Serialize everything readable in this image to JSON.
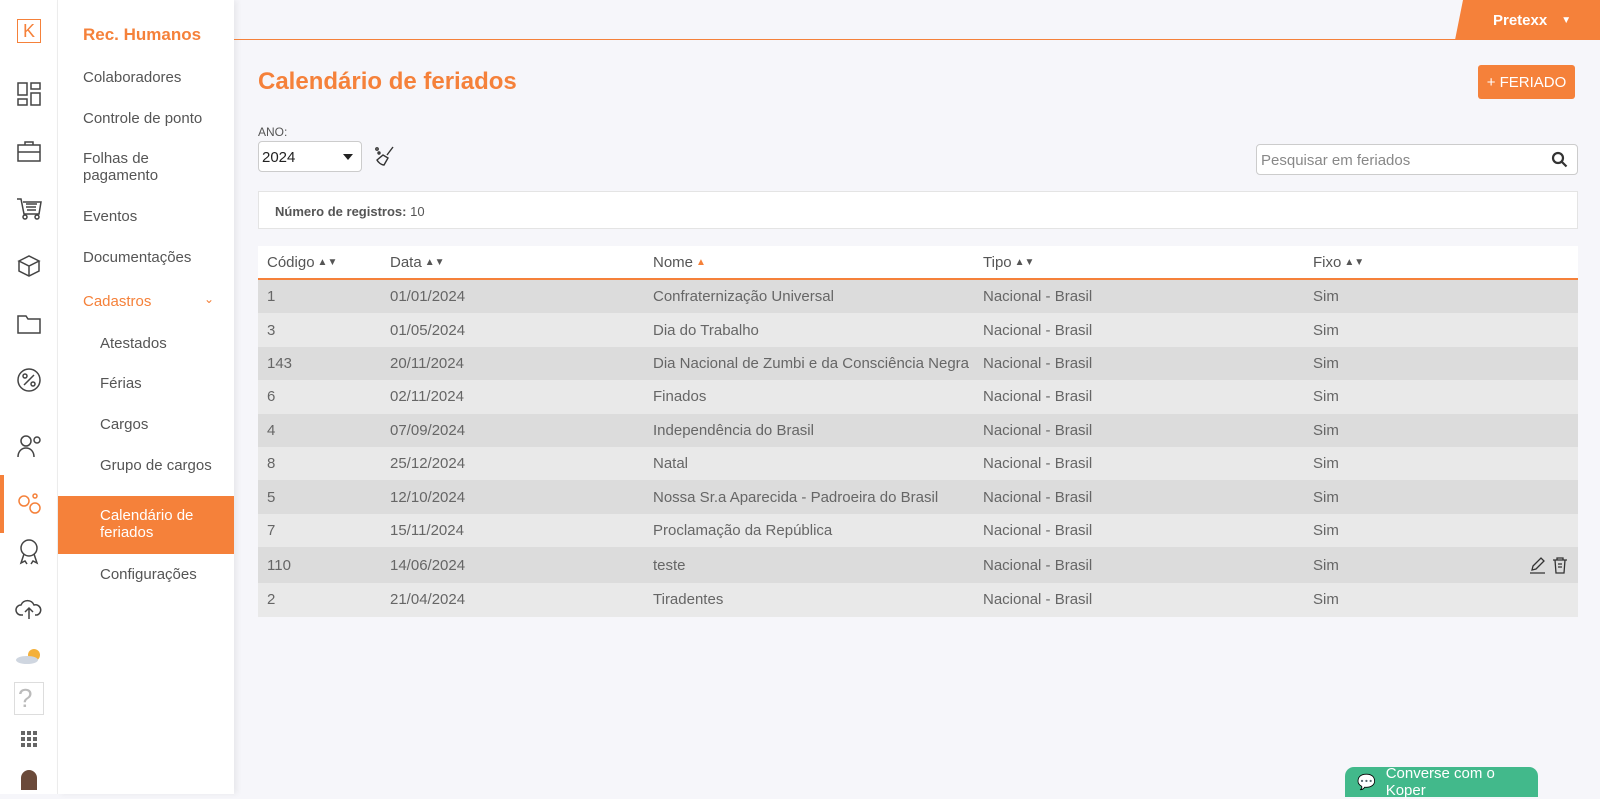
{
  "colors": {
    "accent": "#f5813a",
    "chat": "#42b98b"
  },
  "rail": {
    "logo": "K",
    "icons": [
      "dashboard-icon",
      "briefcase-icon",
      "cart-icon",
      "box-icon",
      "folder-icon",
      "percent-icon",
      "worker-icon",
      "hr-people-icon",
      "award-icon",
      "cloud-upload-icon",
      "weather-icon",
      "help-icon",
      "apps-grid-icon",
      "avatar"
    ]
  },
  "menu": {
    "title": "Rec. Humanos",
    "items": [
      "Colaboradores",
      "Controle de ponto",
      "Folhas de pagamento",
      "Eventos",
      "Documentações"
    ],
    "section": "Cadastros",
    "sub": [
      "Atestados",
      "Férias",
      "Cargos",
      "Grupo de cargos",
      "Calendário de feriados",
      "Configurações"
    ],
    "active": "Calendário de feriados"
  },
  "topbar": {
    "user": "Pretexx"
  },
  "page": {
    "title": "Calendário de feriados",
    "add_button": "+ FERIADO",
    "year_label": "ANO:",
    "year": "2024",
    "search_placeholder": "Pesquisar em feriados",
    "count_label": "Número de registros:",
    "count": "10"
  },
  "table": {
    "headers": [
      "Código",
      "Data",
      "Nome",
      "Tipo",
      "Fixo"
    ],
    "sorted": "Nome",
    "rows": [
      [
        "1",
        "01/01/2024",
        "Confraternização Universal",
        "Nacional - Brasil",
        "Sim"
      ],
      [
        "3",
        "01/05/2024",
        "Dia do Trabalho",
        "Nacional - Brasil",
        "Sim"
      ],
      [
        "143",
        "20/11/2024",
        "Dia Nacional de Zumbi e da Consciência Negra",
        "Nacional - Brasil",
        "Sim"
      ],
      [
        "6",
        "02/11/2024",
        "Finados",
        "Nacional - Brasil",
        "Sim"
      ],
      [
        "4",
        "07/09/2024",
        "Independência do Brasil",
        "Nacional - Brasil",
        "Sim"
      ],
      [
        "8",
        "25/12/2024",
        "Natal",
        "Nacional - Brasil",
        "Sim"
      ],
      [
        "5",
        "12/10/2024",
        "Nossa Sr.a Aparecida - Padroeira do Brasil",
        "Nacional - Brasil",
        "Sim"
      ],
      [
        "7",
        "15/11/2024",
        "Proclamação da República",
        "Nacional - Brasil",
        "Sim"
      ],
      [
        "110",
        "14/06/2024",
        "teste",
        "Nacional - Brasil",
        "Sim"
      ],
      [
        "2",
        "21/04/2024",
        "Tiradentes",
        "Nacional - Brasil",
        "Sim"
      ]
    ],
    "hovered_row": 8
  },
  "chat": {
    "label": "Converse com o Koper"
  }
}
